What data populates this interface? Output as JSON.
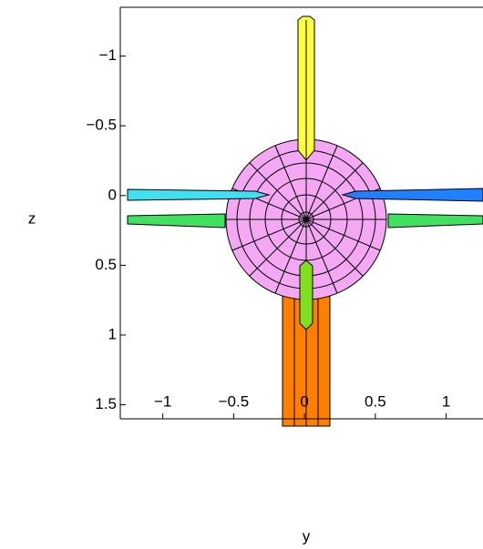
{
  "chart_data": {
    "type": "surface3d",
    "x_label": "y",
    "y_label": "z",
    "xlim": [
      -1.3,
      1.26
    ],
    "ylim": [
      -1.35,
      1.64
    ],
    "invert_y": true,
    "xticks": [
      {
        "value": -1,
        "label": "−1"
      },
      {
        "value": -0.5,
        "label": "−0.5"
      },
      0,
      0.5,
      1
    ],
    "yticks": [
      {
        "value": -1,
        "label": "−1"
      },
      {
        "value": -0.5,
        "label": "−0.5"
      },
      0,
      0.5,
      1,
      1.5
    ]
  }
}
